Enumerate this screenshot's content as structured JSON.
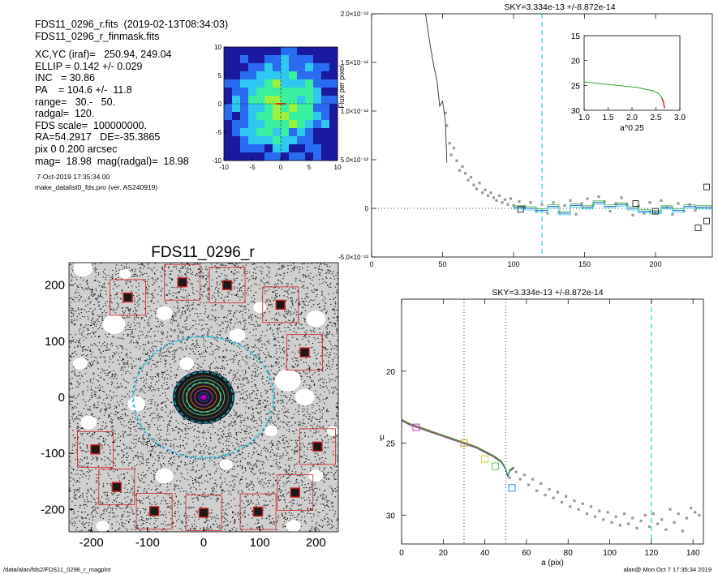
{
  "header_lines": [
    "FDS11_0296_r.fits  (2019-02-13T08:34:03)",
    "FDS11_0296_r_finmask.fits"
  ],
  "info_lines": [
    "XC,YC (iraf)=   250.94, 249.04",
    "ELLIP = 0.142 +/- 0.029",
    "INC   = 30.86",
    "PA    = 104.6 +/-  11.8",
    "range=   30.-   50.",
    "radgal=  120.",
    "FDS scale=  100000000.",
    "RA=54.2917   DE=-35.3865",
    "pix 0 0.200 arcsec",
    "mag=  18.98  mag(radgal)=  18.98"
  ],
  "small_lines": [
    " 7-Oct-2019 17:35:34.00",
    "make_datalist0_fds.pro (ver. AS240919)"
  ],
  "footer": {
    "left": "/data/alan/fds2/FDS11_0296_r_magplot",
    "right": "alan@  Mon Oct  7 17:35:34 2019"
  },
  "colors": {
    "cyan": "#00c8d8",
    "red_box": "#d22020",
    "grey_point": "#9a9a9a",
    "green": "#30b030"
  },
  "chart_data": [
    {
      "type": "heatmap",
      "title": "",
      "xlim": [
        -10,
        10
      ],
      "ylim": [
        -10,
        10
      ],
      "x_ticks": [
        "-10",
        "-5",
        "0",
        "5",
        "10"
      ],
      "y_ticks": [
        "10",
        "5",
        "0",
        "-5",
        "-10"
      ],
      "colors": [
        "#1a1aa0",
        "#2a6cf0",
        "#2ec8f0",
        "#38f0a0",
        "#9cf040",
        "#e8e840"
      ]
    },
    {
      "type": "scatter",
      "title": "FDS11_0296_r",
      "xlim": [
        -240,
        240
      ],
      "ylim": [
        -240,
        240
      ],
      "x_ticks": [
        "-200",
        "-100",
        "0",
        "100",
        "200"
      ],
      "y_ticks": [
        "200",
        "100",
        "0",
        "-100",
        "-200"
      ],
      "ellipse_radii": [
        120,
        50,
        30
      ],
      "masked_sources": [
        [
          -135,
          178
        ],
        [
          -38,
          205
        ],
        [
          42,
          200
        ],
        [
          137,
          165
        ],
        [
          180,
          80
        ],
        [
          -193,
          -93
        ],
        [
          203,
          -88
        ],
        [
          -155,
          -160
        ],
        [
          -88,
          -203
        ],
        [
          0,
          -206
        ],
        [
          97,
          -204
        ],
        [
          163,
          -170
        ]
      ]
    },
    {
      "type": "line",
      "title": "SKY=3.334e-13 +/-8.872e-14",
      "xlabel": "",
      "ylabel": "Flux per pixel",
      "xlim": [
        0,
        240
      ],
      "ylim": [
        -5e-13,
        2e-12
      ],
      "x_ticks": [
        "0",
        "50",
        "100",
        "150",
        "200"
      ],
      "y_ticks": [
        "2.0×10⁻¹²",
        "1.5×10⁻¹²",
        "1.0×10⁻¹²",
        "5.0×10⁻¹³",
        "0",
        "-5.0×10⁻¹³"
      ],
      "y_tick_values": [
        2e-12,
        1.5e-12,
        1e-12,
        5e-13,
        0,
        -5e-13
      ],
      "sky_radius": 120,
      "profile": [
        [
          38,
          2e-12
        ],
        [
          41,
          1.7e-12
        ],
        [
          44,
          1.45e-12
        ],
        [
          46,
          1.32e-12
        ],
        [
          48,
          1.05e-12
        ],
        [
          50,
          1.1e-12
        ],
        [
          52,
          9e-13
        ],
        [
          53,
          4.7e-13
        ]
      ],
      "scatter": [
        [
          52,
          9.8e-13
        ],
        [
          53,
          8.5e-13
        ],
        [
          55,
          6.7e-13
        ],
        [
          56,
          5.5e-13
        ],
        [
          58,
          6.2e-13
        ],
        [
          60,
          4.9e-13
        ],
        [
          62,
          3.9e-13
        ],
        [
          64,
          4.3e-13
        ],
        [
          66,
          3.6e-13
        ],
        [
          68,
          2.9e-13
        ],
        [
          70,
          3.2e-13
        ],
        [
          72,
          2.4e-13
        ],
        [
          74,
          2e-13
        ],
        [
          76,
          2.6e-13
        ],
        [
          78,
          1.6e-13
        ],
        [
          80,
          1.9e-13
        ],
        [
          82,
          1.3e-13
        ],
        [
          84,
          1.6e-13
        ],
        [
          86,
          1.1e-13
        ],
        [
          88,
          8e-14
        ],
        [
          90,
          1.3e-13
        ],
        [
          92,
          6e-14
        ],
        [
          94,
          9e-14
        ],
        [
          96,
          4e-14
        ],
        [
          98,
          1e-13
        ],
        [
          100,
          3e-14
        ],
        [
          104,
          7e-14
        ],
        [
          108,
          2e-14
        ],
        [
          112,
          6e-14
        ],
        [
          116,
          -3e-14
        ],
        [
          120,
          4e-14
        ],
        [
          124,
          -5e-14
        ],
        [
          128,
          6e-14
        ],
        [
          132,
          -4e-14
        ],
        [
          136,
          3e-14
        ],
        [
          140,
          8e-14
        ],
        [
          144,
          -6e-14
        ],
        [
          148,
          5e-14
        ],
        [
          152,
          1e-13
        ],
        [
          156,
          3e-14
        ],
        [
          160,
          1.2e-13
        ],
        [
          164,
          7e-14
        ],
        [
          168,
          -3e-14
        ],
        [
          172,
          5e-14
        ],
        [
          176,
          1.1e-13
        ],
        [
          180,
          4e-14
        ],
        [
          184,
          -7e-14
        ],
        [
          188,
          2e-14
        ],
        [
          192,
          -5e-14
        ],
        [
          196,
          6e-14
        ],
        [
          200,
          -4e-14
        ],
        [
          204,
          8e-14
        ],
        [
          208,
          1e-14
        ],
        [
          212,
          -6e-14
        ],
        [
          216,
          5e-14
        ],
        [
          220,
          -3e-14
        ],
        [
          224,
          4e-14
        ],
        [
          228,
          -2e-14
        ]
      ],
      "sky_steps": [
        [
          100,
          1e-14
        ],
        [
          108,
          0.0
        ],
        [
          116,
          -2e-14
        ],
        [
          124,
          2e-14
        ],
        [
          132,
          -5e-14
        ],
        [
          140,
          3e-14
        ],
        [
          148,
          1e-14
        ],
        [
          156,
          6e-14
        ],
        [
          164,
          2e-14
        ],
        [
          172,
          4e-14
        ],
        [
          180,
          0.0
        ],
        [
          188,
          -3e-14
        ],
        [
          196,
          -4e-14
        ],
        [
          204,
          1e-14
        ],
        [
          212,
          -2e-14
        ],
        [
          220,
          2e-14
        ],
        [
          228,
          1e-14
        ],
        [
          236,
          1e-14
        ]
      ],
      "boxes": [
        [
          105,
          -1e-14
        ],
        [
          186,
          5e-14
        ],
        [
          200,
          -3e-14
        ],
        [
          230,
          -2e-13
        ],
        [
          236,
          2.2e-13
        ],
        [
          236,
          -1.3e-13
        ]
      ],
      "inset": {
        "type": "line",
        "xlabel": "a^0.25",
        "xlim": [
          1.0,
          3.0
        ],
        "ylim": [
          15,
          30
        ],
        "x_ticks": [
          "1.0",
          "1.5",
          "2.0",
          "2.5",
          "3.0"
        ],
        "y_ticks": [
          "15",
          "20",
          "25",
          "30"
        ],
        "profile": [
          [
            1.0,
            24.3
          ],
          [
            1.3,
            24.6
          ],
          [
            1.6,
            24.9
          ],
          [
            1.9,
            25.2
          ],
          [
            2.1,
            25.4
          ],
          [
            2.3,
            25.8
          ],
          [
            2.45,
            26.1
          ],
          [
            2.55,
            26.6
          ],
          [
            2.62,
            27.4
          ],
          [
            2.66,
            28.5
          ],
          [
            2.68,
            29.6
          ]
        ]
      }
    },
    {
      "type": "line",
      "title": "SKY=3.334e-13 +/-8.872e-14",
      "xlabel": "a (pix)",
      "ylabel": "μ",
      "xlim": [
        0,
        145
      ],
      "ylim": [
        32,
        15
      ],
      "x_ticks": [
        "0",
        "20",
        "40",
        "60",
        "80",
        "100",
        "120",
        "140"
      ],
      "y_ticks": [
        "20",
        "25",
        "30"
      ],
      "vlines": [
        30,
        50
      ],
      "sky_radius": 120,
      "profile": [
        [
          0,
          23.4
        ],
        [
          4,
          23.7
        ],
        [
          8,
          23.9
        ],
        [
          12,
          24.1
        ],
        [
          16,
          24.3
        ],
        [
          20,
          24.5
        ],
        [
          24,
          24.7
        ],
        [
          28,
          24.9
        ],
        [
          32,
          25.1
        ],
        [
          36,
          25.3
        ],
        [
          40,
          25.6
        ],
        [
          44,
          25.9
        ],
        [
          48,
          26.3
        ],
        [
          50,
          26.8
        ],
        [
          51,
          27.3
        ],
        [
          52,
          26.9
        ],
        [
          54,
          26.7
        ]
      ],
      "boxes": [
        [
          7,
          23.9
        ],
        [
          30,
          25.0
        ],
        [
          40,
          26.1
        ],
        [
          45,
          26.6
        ],
        [
          53,
          28.1
        ]
      ],
      "scatter": [
        [
          52,
          27.4
        ],
        [
          55,
          27.0
        ],
        [
          57,
          27.5
        ],
        [
          59,
          27.2
        ],
        [
          61,
          27.9
        ],
        [
          63,
          27.5
        ],
        [
          65,
          28.3
        ],
        [
          67,
          27.8
        ],
        [
          69,
          28.6
        ],
        [
          71,
          28.2
        ],
        [
          73,
          28.8
        ],
        [
          75,
          28.4
        ],
        [
          77,
          29.1
        ],
        [
          79,
          28.7
        ],
        [
          81,
          29.4
        ],
        [
          83,
          29.0
        ],
        [
          85,
          29.6
        ],
        [
          87,
          29.2
        ],
        [
          89,
          29.9
        ],
        [
          91,
          29.4
        ],
        [
          93,
          30.1
        ],
        [
          95,
          29.7
        ],
        [
          97,
          30.3
        ],
        [
          99,
          29.8
        ],
        [
          101,
          30.5
        ],
        [
          103,
          30.1
        ],
        [
          105,
          30.7
        ],
        [
          107,
          29.9
        ],
        [
          109,
          30.6
        ],
        [
          111,
          30.2
        ],
        [
          113,
          30.9
        ],
        [
          115,
          30.4
        ],
        [
          117,
          30.0
        ],
        [
          119,
          30.8
        ],
        [
          121,
          29.9
        ],
        [
          123,
          30.6
        ],
        [
          125,
          30.3
        ],
        [
          127,
          31.0
        ],
        [
          129,
          29.6
        ],
        [
          131,
          30.5
        ],
        [
          133,
          29.9
        ],
        [
          135,
          31.1
        ],
        [
          137,
          30.2
        ],
        [
          139,
          29.5
        ],
        [
          141,
          29.8
        ],
        [
          143,
          30.0
        ]
      ]
    }
  ]
}
